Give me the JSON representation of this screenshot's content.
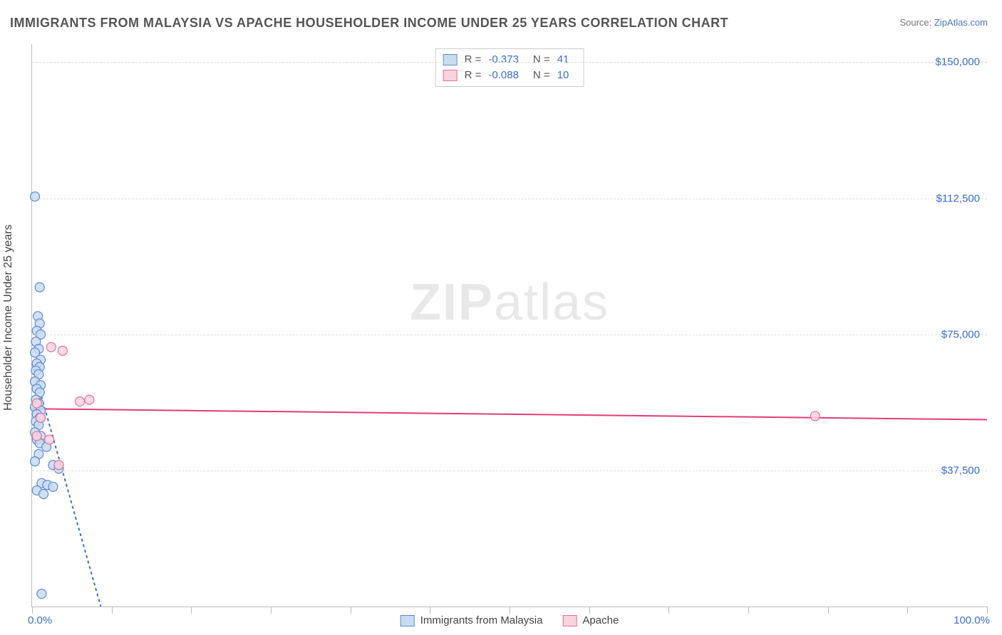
{
  "title": "IMMIGRANTS FROM MALAYSIA VS APACHE HOUSEHOLDER INCOME UNDER 25 YEARS CORRELATION CHART",
  "source_prefix": "Source: ",
  "source_link": "ZipAtlas.com",
  "yaxis_title": "Householder Income Under 25 years",
  "watermark_a": "ZIP",
  "watermark_b": "atlas",
  "chart": {
    "type": "scatter",
    "x_min": 0.0,
    "x_max": 100.0,
    "y_min": 0,
    "y_max": 155000,
    "x_tick_label_left": "0.0%",
    "x_tick_label_right": "100.0%",
    "x_ticks": [
      0,
      8.33,
      16.67,
      25,
      33.33,
      41.67,
      50,
      58.33,
      66.67,
      75,
      83.33,
      91.67,
      100
    ],
    "y_gridlines": [
      37500,
      75000,
      112500,
      150000
    ],
    "y_labels": [
      "$37,500",
      "$75,000",
      "$112,500",
      "$150,000"
    ],
    "background_color": "#ffffff",
    "grid_color": "#dddddd",
    "axis_color": "#bbbbbb",
    "label_color": "#3b6fc9",
    "title_color": "#555555",
    "series": [
      {
        "name": "Immigrants from Malaysia",
        "fill": "#c9dbf2",
        "stroke": "#5b8bd4",
        "line_stroke": "#3b6fc9",
        "R": "-0.373",
        "N": "41",
        "trend": {
          "x1": 0.0,
          "y1": 67000,
          "x2": 7.2,
          "y2": 0,
          "dash": "4 4"
        },
        "points": [
          {
            "x": 0.3,
            "y": 113000
          },
          {
            "x": 0.8,
            "y": 88000
          },
          {
            "x": 0.6,
            "y": 80000
          },
          {
            "x": 0.8,
            "y": 78000
          },
          {
            "x": 0.5,
            "y": 76000
          },
          {
            "x": 0.9,
            "y": 75000
          },
          {
            "x": 0.4,
            "y": 73000
          },
          {
            "x": 0.7,
            "y": 71000
          },
          {
            "x": 0.3,
            "y": 70000
          },
          {
            "x": 0.9,
            "y": 68000
          },
          {
            "x": 0.5,
            "y": 67000
          },
          {
            "x": 0.8,
            "y": 66000
          },
          {
            "x": 0.4,
            "y": 65000
          },
          {
            "x": 0.7,
            "y": 64000
          },
          {
            "x": 0.3,
            "y": 62000
          },
          {
            "x": 0.9,
            "y": 61000
          },
          {
            "x": 0.5,
            "y": 60000
          },
          {
            "x": 0.8,
            "y": 59000
          },
          {
            "x": 0.4,
            "y": 57000
          },
          {
            "x": 0.7,
            "y": 56000
          },
          {
            "x": 0.3,
            "y": 55000
          },
          {
            "x": 0.9,
            "y": 54000
          },
          {
            "x": 0.5,
            "y": 53000
          },
          {
            "x": 0.8,
            "y": 52000
          },
          {
            "x": 0.4,
            "y": 51000
          },
          {
            "x": 0.7,
            "y": 50000
          },
          {
            "x": 0.3,
            "y": 48000
          },
          {
            "x": 0.9,
            "y": 47000
          },
          {
            "x": 0.5,
            "y": 46000
          },
          {
            "x": 0.8,
            "y": 45000
          },
          {
            "x": 1.5,
            "y": 44000
          },
          {
            "x": 0.7,
            "y": 42000
          },
          {
            "x": 0.3,
            "y": 40000
          },
          {
            "x": 2.2,
            "y": 39000
          },
          {
            "x": 2.8,
            "y": 38000
          },
          {
            "x": 1.0,
            "y": 34000
          },
          {
            "x": 1.6,
            "y": 33500
          },
          {
            "x": 2.2,
            "y": 33000
          },
          {
            "x": 0.5,
            "y": 32000
          },
          {
            "x": 1.2,
            "y": 31000
          },
          {
            "x": 1.0,
            "y": 3500
          }
        ]
      },
      {
        "name": "Apache",
        "fill": "#f7d4de",
        "stroke": "#e66f97",
        "line_stroke": "#e23d74",
        "R": "-0.088",
        "N": "10",
        "trend": {
          "x1": 0.0,
          "y1": 54500,
          "x2": 100.0,
          "y2": 51500,
          "dash": "none"
        },
        "points": [
          {
            "x": 2.0,
            "y": 71500
          },
          {
            "x": 3.2,
            "y": 70500
          },
          {
            "x": 0.5,
            "y": 56000
          },
          {
            "x": 5.0,
            "y": 56500
          },
          {
            "x": 6.0,
            "y": 57000
          },
          {
            "x": 0.9,
            "y": 52000
          },
          {
            "x": 0.5,
            "y": 47000
          },
          {
            "x": 1.8,
            "y": 46000
          },
          {
            "x": 2.8,
            "y": 39000
          },
          {
            "x": 82.0,
            "y": 52500
          }
        ]
      }
    ]
  },
  "legend_top": {
    "r_label": "R =",
    "n_label": "N ="
  }
}
